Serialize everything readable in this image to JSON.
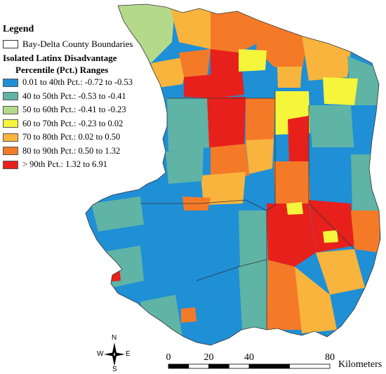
{
  "legend": {
    "title": "Legend",
    "boundary_label": "Bay-Delta County Boundaries",
    "index_title": "Isolated Latinx Disadvantage",
    "index_subtitle": "Percentile (Pct.) Ranges",
    "classes": [
      {
        "label": "0.01 to 40th Pct.: -0.72 to -0.53",
        "color": "#1f8fd6"
      },
      {
        "label": "40 to 50th Pct.: -0.53 to -0.41",
        "color": "#5fb4a6"
      },
      {
        "label": "50 to 60th Pct.: -0.41 to -0.23",
        "color": "#b5d98a"
      },
      {
        "label": "60 to 70th Pct.: -0.23 to 0.02",
        "color": "#f5f53c"
      },
      {
        "label": "70 to 80th Pct.: 0.02 to 0.50",
        "color": "#f8b43c"
      },
      {
        "label": "80 to 90th Pct.: 0.50 to 1.32",
        "color": "#f57a28"
      },
      {
        "label": "> 90th Pct.: 1.32 to 6.91",
        "color": "#e8201c"
      }
    ]
  },
  "north_arrow": {
    "n": "N",
    "s": "S",
    "e": "E",
    "w": "W"
  },
  "scale_bar": {
    "ticks": [
      "0",
      "20",
      "40",
      "80"
    ],
    "tick_values": [
      0,
      20,
      40,
      80
    ],
    "units": "Kilometers"
  }
}
